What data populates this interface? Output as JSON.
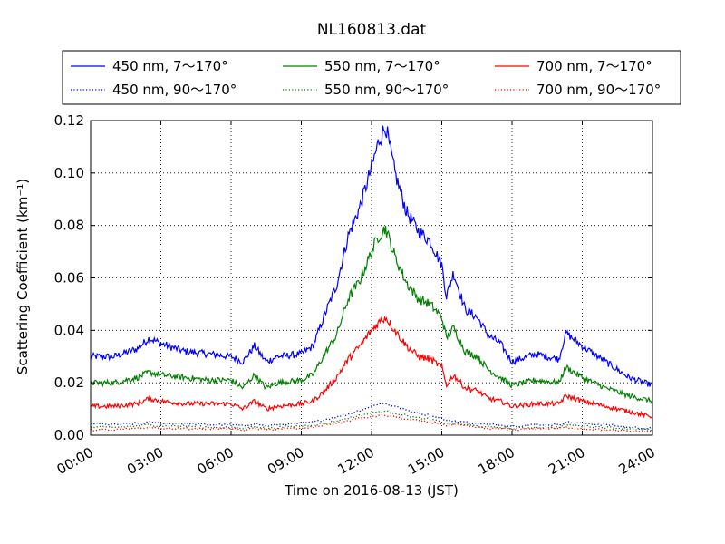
{
  "chart_data": {
    "type": "line",
    "title": "NL160813.dat",
    "xlabel": "Time on 2016-08-13 (JST)",
    "ylabel": "Scattering Coefficient (km⁻¹)",
    "x_ticks": [
      "00:00",
      "03:00",
      "06:00",
      "09:00",
      "12:00",
      "15:00",
      "18:00",
      "21:00",
      "24:00"
    ],
    "x_range_hours": [
      0,
      24
    ],
    "y_ticks": [
      "0.00",
      "0.02",
      "0.04",
      "0.06",
      "0.08",
      "0.10",
      "0.12"
    ],
    "ylim": [
      0,
      0.12
    ],
    "grid": true,
    "legend_placement": "top, above plot, 3 columns",
    "x_hours": [
      0,
      1,
      2,
      2.5,
      3,
      4,
      5,
      6,
      6.5,
      7,
      7.5,
      8,
      9,
      9.5,
      10,
      10.5,
      11,
      11.5,
      12,
      12.3,
      12.6,
      13,
      13.5,
      14,
      14.5,
      15,
      15.2,
      15.5,
      16,
      16.5,
      17,
      17.5,
      18,
      19,
      20,
      20.3,
      21,
      22,
      23,
      24
    ],
    "series": [
      {
        "name": "450 nm, 7～170°",
        "color": "#0000ff",
        "style": "solid",
        "values": [
          0.03,
          0.03,
          0.033,
          0.037,
          0.035,
          0.032,
          0.031,
          0.03,
          0.028,
          0.034,
          0.028,
          0.03,
          0.031,
          0.034,
          0.046,
          0.057,
          0.076,
          0.087,
          0.102,
          0.112,
          0.118,
          0.1,
          0.085,
          0.078,
          0.074,
          0.065,
          0.053,
          0.062,
          0.048,
          0.045,
          0.038,
          0.035,
          0.028,
          0.031,
          0.029,
          0.039,
          0.034,
          0.028,
          0.022,
          0.019
        ]
      },
      {
        "name": "450 nm, 90～170°",
        "color": "#0000ff",
        "style": "dotted",
        "values": [
          0.0045,
          0.004,
          0.0045,
          0.005,
          0.0045,
          0.0045,
          0.004,
          0.004,
          0.0035,
          0.0045,
          0.0035,
          0.004,
          0.0045,
          0.005,
          0.006,
          0.007,
          0.008,
          0.0095,
          0.011,
          0.012,
          0.012,
          0.011,
          0.0095,
          0.0085,
          0.0075,
          0.0065,
          0.0055,
          0.0055,
          0.005,
          0.0045,
          0.004,
          0.004,
          0.0035,
          0.004,
          0.004,
          0.005,
          0.0045,
          0.004,
          0.003,
          0.0025
        ]
      },
      {
        "name": "550 nm, 7～170°",
        "color": "#008000",
        "style": "solid",
        "values": [
          0.02,
          0.02,
          0.022,
          0.024,
          0.023,
          0.022,
          0.021,
          0.021,
          0.018,
          0.023,
          0.018,
          0.02,
          0.021,
          0.023,
          0.031,
          0.038,
          0.052,
          0.059,
          0.07,
          0.076,
          0.079,
          0.068,
          0.058,
          0.052,
          0.05,
          0.045,
          0.037,
          0.041,
          0.032,
          0.03,
          0.025,
          0.022,
          0.019,
          0.021,
          0.02,
          0.026,
          0.022,
          0.018,
          0.015,
          0.013
        ]
      },
      {
        "name": "550 nm, 90～170°",
        "color": "#008000",
        "style": "dotted",
        "values": [
          0.003,
          0.003,
          0.0035,
          0.004,
          0.0035,
          0.0035,
          0.003,
          0.003,
          0.0025,
          0.0035,
          0.0025,
          0.003,
          0.0035,
          0.004,
          0.0045,
          0.0055,
          0.0065,
          0.0075,
          0.0085,
          0.009,
          0.009,
          0.0085,
          0.0075,
          0.0065,
          0.006,
          0.005,
          0.0045,
          0.0045,
          0.004,
          0.0035,
          0.003,
          0.003,
          0.0025,
          0.003,
          0.003,
          0.004,
          0.0035,
          0.003,
          0.0025,
          0.002
        ]
      },
      {
        "name": "700 nm, 7～170°",
        "color": "#ff0000",
        "style": "solid",
        "values": [
          0.011,
          0.011,
          0.012,
          0.014,
          0.013,
          0.012,
          0.012,
          0.012,
          0.01,
          0.013,
          0.01,
          0.011,
          0.012,
          0.013,
          0.017,
          0.022,
          0.029,
          0.034,
          0.04,
          0.043,
          0.045,
          0.04,
          0.034,
          0.03,
          0.029,
          0.026,
          0.019,
          0.023,
          0.018,
          0.017,
          0.014,
          0.013,
          0.011,
          0.012,
          0.012,
          0.015,
          0.013,
          0.011,
          0.009,
          0.007
        ]
      },
      {
        "name": "700 nm, 90～170°",
        "color": "#ff0000",
        "style": "dotted",
        "values": [
          0.002,
          0.002,
          0.0025,
          0.003,
          0.0025,
          0.0025,
          0.0025,
          0.0025,
          0.002,
          0.0025,
          0.002,
          0.0025,
          0.0025,
          0.003,
          0.004,
          0.0045,
          0.0055,
          0.0065,
          0.007,
          0.0075,
          0.0075,
          0.007,
          0.006,
          0.0055,
          0.005,
          0.0045,
          0.0035,
          0.004,
          0.0035,
          0.003,
          0.0025,
          0.0025,
          0.002,
          0.0025,
          0.0025,
          0.003,
          0.0025,
          0.002,
          0.0015,
          0.0015
        ]
      }
    ]
  }
}
